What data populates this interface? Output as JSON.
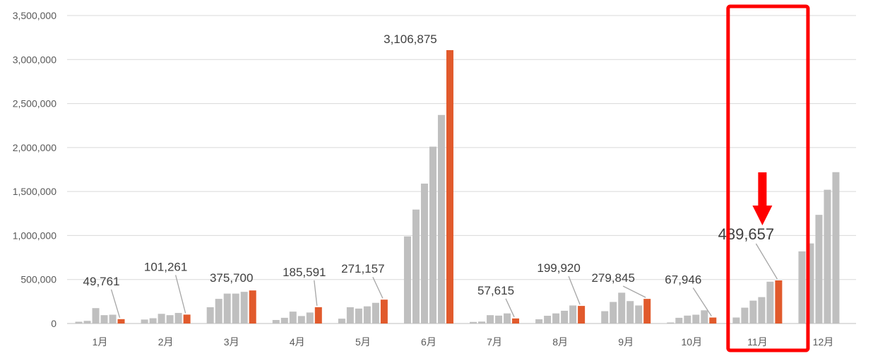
{
  "chart_data": {
    "type": "bar",
    "title": "",
    "xlabel": "",
    "ylabel": "",
    "ylim": [
      0,
      3500000
    ],
    "yticks": [
      0,
      500000,
      1000000,
      1500000,
      2000000,
      2500000,
      3000000,
      3500000
    ],
    "ytick_labels": [
      "0",
      "500,000",
      "1,000,000",
      "1,500,000",
      "2,000,000",
      "2,500,000",
      "3,000,000",
      "3,500,000"
    ],
    "grid": true,
    "legend": "none",
    "categories": [
      "1月",
      "2月",
      "3月",
      "4月",
      "5月",
      "6月",
      "7月",
      "8月",
      "9月",
      "10月",
      "11月",
      "12月"
    ],
    "series_per_category": 6,
    "groups": [
      {
        "category": "1月",
        "values": [
          20000,
          30000,
          175000,
          95000,
          100000,
          49761
        ],
        "label": "49,761"
      },
      {
        "category": "2月",
        "values": [
          45000,
          60000,
          110000,
          95000,
          120000,
          101261
        ],
        "label": "101,261"
      },
      {
        "category": "3月",
        "values": [
          185000,
          280000,
          340000,
          340000,
          360000,
          375700
        ],
        "label": "375,700"
      },
      {
        "category": "4月",
        "values": [
          40000,
          65000,
          135000,
          85000,
          125000,
          185591
        ],
        "label": "185,591"
      },
      {
        "category": "5月",
        "values": [
          55000,
          185000,
          170000,
          195000,
          235000,
          271157
        ],
        "label": "271,157"
      },
      {
        "category": "6月",
        "values": [
          990000,
          1295000,
          1590000,
          2010000,
          2370000,
          3106875
        ],
        "label": "3,106,875"
      },
      {
        "category": "7月",
        "values": [
          18000,
          22000,
          95000,
          90000,
          115000,
          57615
        ],
        "label": "57,615"
      },
      {
        "category": "8月",
        "values": [
          48000,
          88000,
          115000,
          145000,
          205000,
          199920
        ],
        "label": "199,920"
      },
      {
        "category": "9月",
        "values": [
          140000,
          245000,
          350000,
          255000,
          205000,
          279845
        ],
        "label": "279,845"
      },
      {
        "category": "10月",
        "values": [
          12000,
          65000,
          90000,
          100000,
          150000,
          67946
        ],
        "label": "67,946"
      },
      {
        "category": "11月",
        "values": [
          68000,
          180000,
          260000,
          300000,
          475000,
          489657
        ],
        "label": "489,657"
      },
      {
        "category": "12月",
        "values": [
          820000,
          910000,
          1235000,
          1520000,
          1720000
        ],
        "label": ""
      }
    ],
    "highlight": {
      "category": "11月"
    },
    "colors": {
      "previous": "#bfbfbf",
      "current": "#e15a2c",
      "highlight": "#ff0000",
      "grid": "#d9d9d9",
      "text": "#595959",
      "label": "#404040"
    }
  }
}
